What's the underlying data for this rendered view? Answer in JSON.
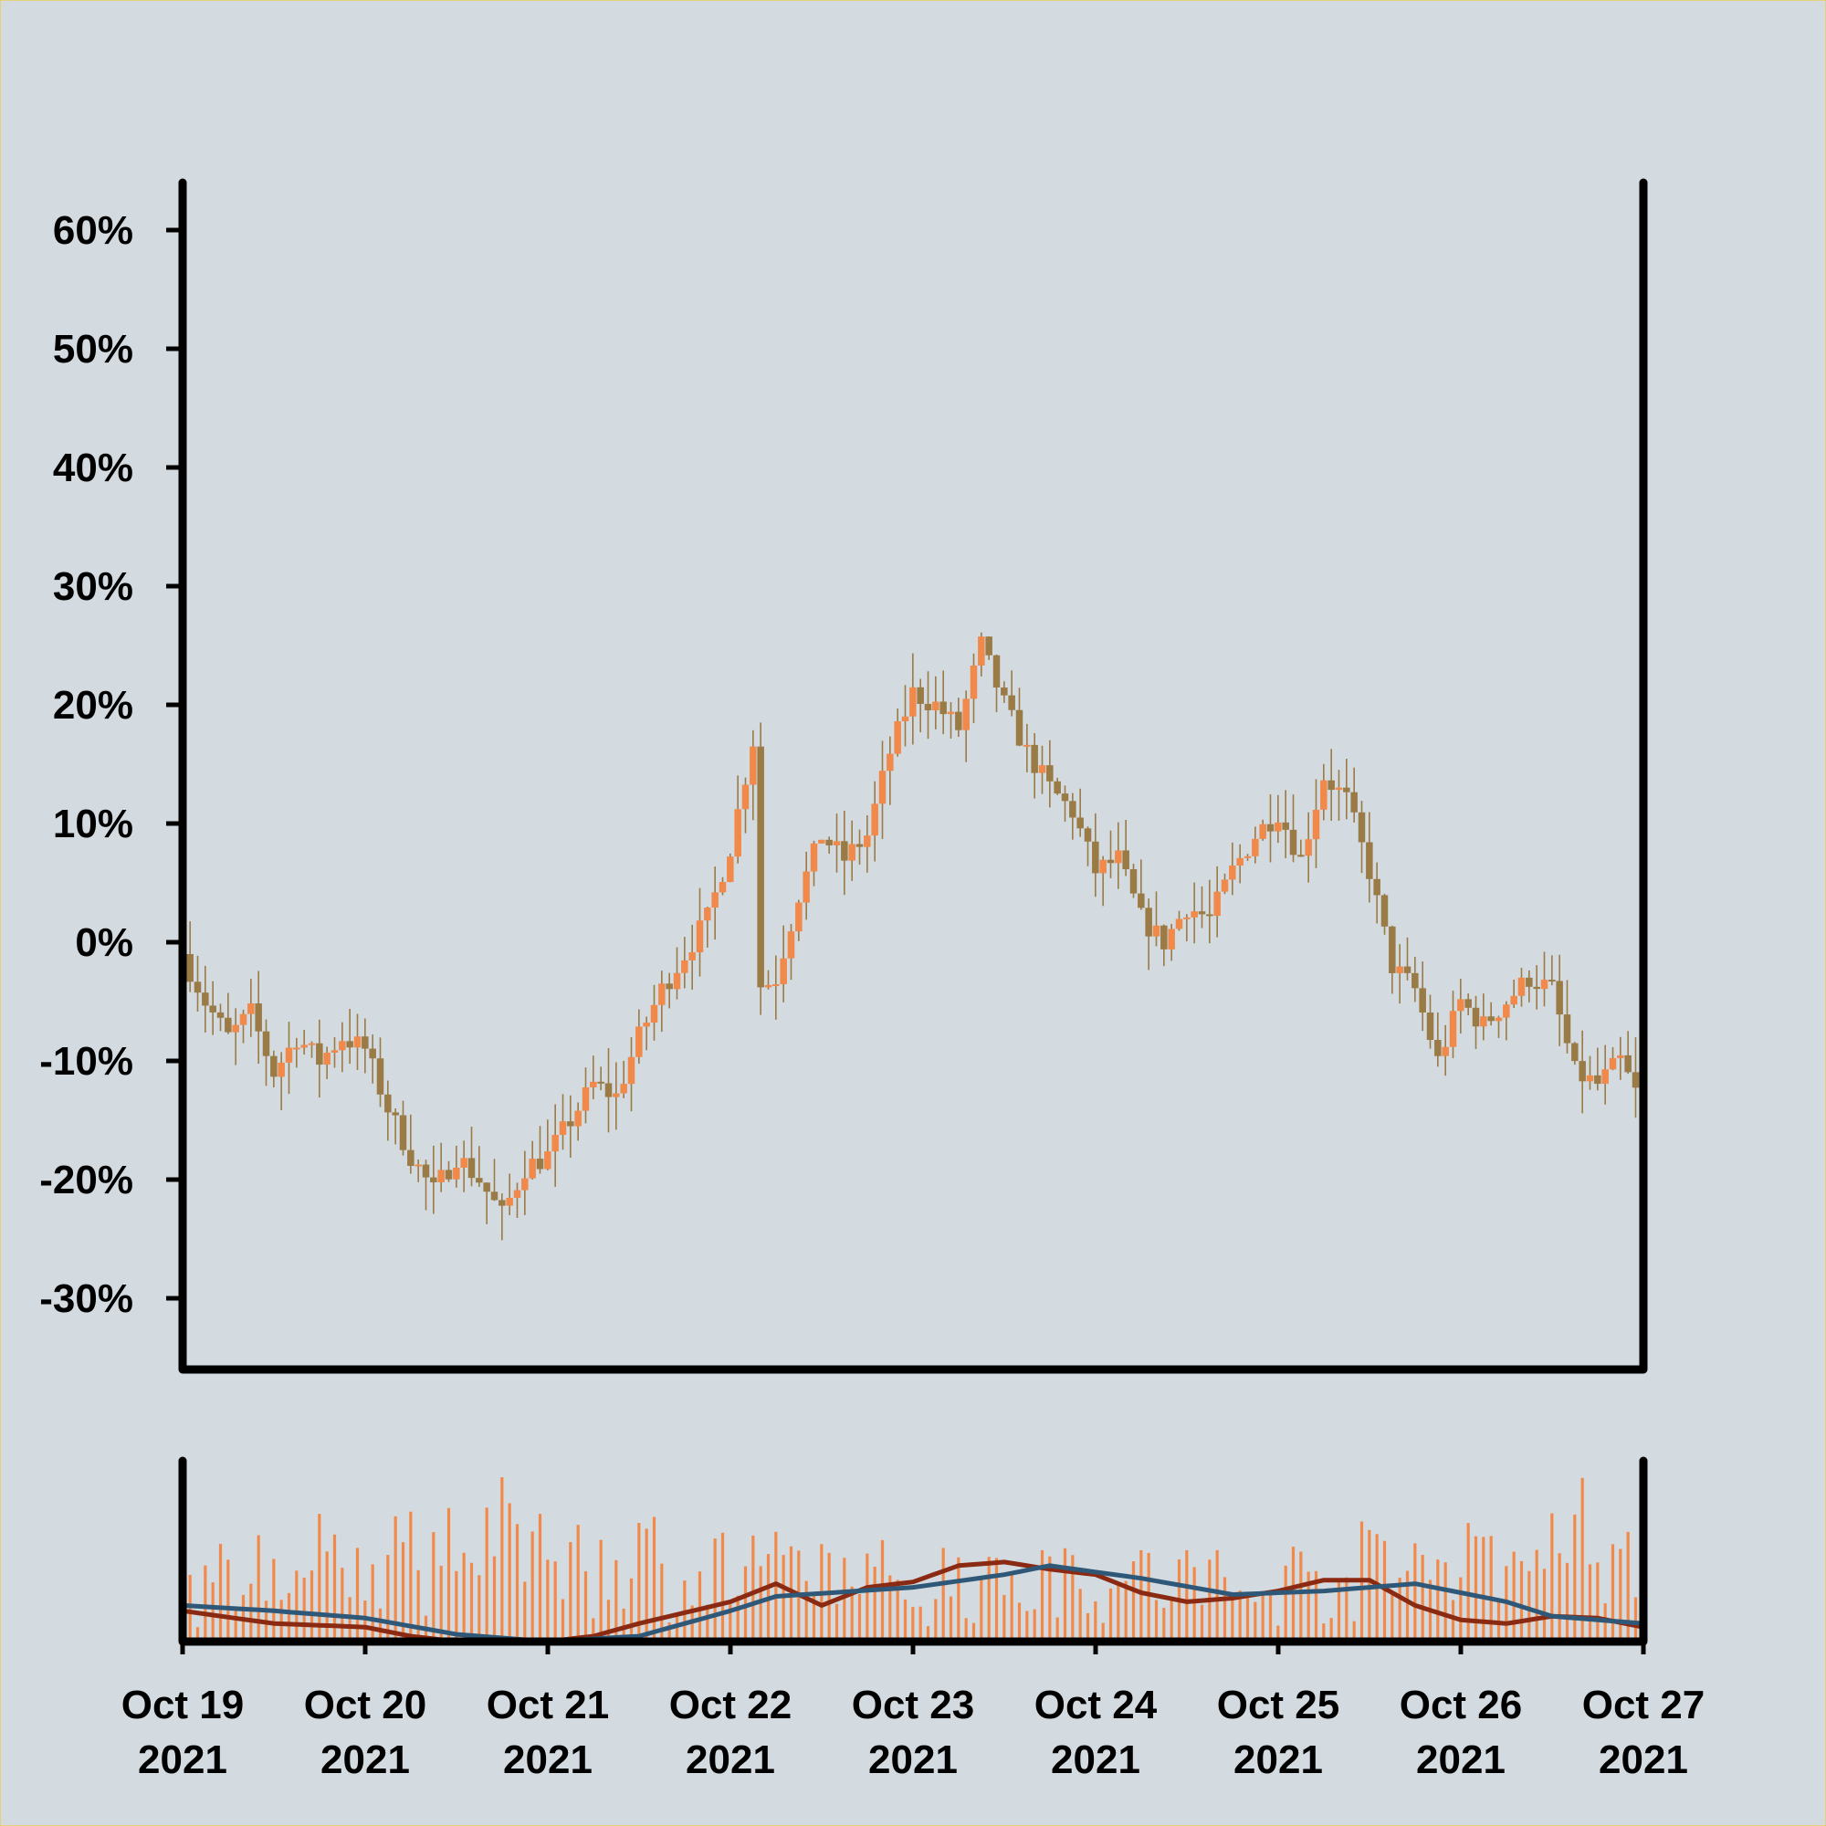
{
  "chart_data": [
    {
      "type": "candlestick",
      "title": "",
      "xlabel": "",
      "ylabel": "",
      "ylim": [
        -36,
        64
      ],
      "y_ticks": [
        "60%",
        "50%",
        "40%",
        "30%",
        "20%",
        "10%",
        "0%",
        "-10%",
        "-20%",
        "-30%"
      ],
      "y_tick_values": [
        60,
        50,
        40,
        30,
        20,
        10,
        0,
        -10,
        -20,
        -30
      ],
      "colors": {
        "up": "#f0894a",
        "down": "#9a7a45",
        "wick": "#9a7a45",
        "background": "#d3dbe0",
        "axis": "#000000"
      },
      "x_start": "2021-10-19",
      "x_end": "2021-10-27",
      "anchors": [
        [
          "2021-10-19 00:00",
          -1
        ],
        [
          "2021-10-19 03:00",
          -5
        ],
        [
          "2021-10-19 06:00",
          -8
        ],
        [
          "2021-10-19 09:00",
          -6
        ],
        [
          "2021-10-19 12:00",
          -11
        ],
        [
          "2021-10-19 15:00",
          -8
        ],
        [
          "2021-10-19 18:00",
          -10
        ],
        [
          "2021-10-19 21:00",
          -8
        ],
        [
          "2021-10-20 00:00",
          -9
        ],
        [
          "2021-10-20 03:00",
          -14
        ],
        [
          "2021-10-20 06:00",
          -18
        ],
        [
          "2021-10-20 09:00",
          -21
        ],
        [
          "2021-10-20 12:00",
          -18
        ],
        [
          "2021-10-20 15:00",
          -20
        ],
        [
          "2021-10-20 18:00",
          -23
        ],
        [
          "2021-10-20 21:00",
          -19
        ],
        [
          "2021-10-21 00:00",
          -18
        ],
        [
          "2021-10-21 03:00",
          -15
        ],
        [
          "2021-10-21 06:00",
          -12
        ],
        [
          "2021-10-21 09:00",
          -13
        ],
        [
          "2021-10-21 12:00",
          -8
        ],
        [
          "2021-10-21 15:00",
          -4
        ],
        [
          "2021-10-21 18:00",
          -1
        ],
        [
          "2021-10-21 21:00",
          2
        ],
        [
          "2021-10-22 00:00",
          8
        ],
        [
          "2021-10-22 03:00",
          17
        ],
        [
          "2021-10-22 03:30",
          -4
        ],
        [
          "2021-10-22 06:00",
          -3
        ],
        [
          "2021-10-22 09:00",
          4
        ],
        [
          "2021-10-22 12:00",
          9
        ],
        [
          "2021-10-22 15:00",
          7
        ],
        [
          "2021-10-22 18:00",
          9
        ],
        [
          "2021-10-22 21:00",
          16
        ],
        [
          "2021-10-23 00:00",
          21
        ],
        [
          "2021-10-23 03:00",
          20
        ],
        [
          "2021-10-23 06:00",
          18
        ],
        [
          "2021-10-23 09:00",
          25
        ],
        [
          "2021-10-23 12:00",
          20
        ],
        [
          "2021-10-23 15:00",
          16
        ],
        [
          "2021-10-23 18:00",
          13
        ],
        [
          "2021-10-23 21:00",
          11
        ],
        [
          "2021-10-24 00:00",
          6
        ],
        [
          "2021-10-24 03:00",
          7
        ],
        [
          "2021-10-24 06:00",
          2
        ],
        [
          "2021-10-24 09:00",
          0
        ],
        [
          "2021-10-24 12:00",
          3
        ],
        [
          "2021-10-24 15:00",
          2
        ],
        [
          "2021-10-24 18:00",
          6
        ],
        [
          "2021-10-24 21:00",
          9
        ],
        [
          "2021-10-25 00:00",
          11
        ],
        [
          "2021-10-25 03:00",
          7
        ],
        [
          "2021-10-25 06:00",
          14
        ],
        [
          "2021-10-25 09:00",
          12
        ],
        [
          "2021-10-25 12:00",
          6
        ],
        [
          "2021-10-25 15:00",
          -2
        ],
        [
          "2021-10-25 18:00",
          -4
        ],
        [
          "2021-10-25 21:00",
          -10
        ],
        [
          "2021-10-26 00:00",
          -5
        ],
        [
          "2021-10-26 03:00",
          -7
        ],
        [
          "2021-10-26 06:00",
          -5
        ],
        [
          "2021-10-26 09:00",
          -3
        ],
        [
          "2021-10-26 12:00",
          -4
        ],
        [
          "2021-10-26 15:00",
          -11
        ],
        [
          "2021-10-26 18:00",
          -12
        ],
        [
          "2021-10-26 21:00",
          -10
        ],
        [
          "2021-10-27 00:00",
          -14
        ]
      ]
    },
    {
      "type": "bar",
      "title": "",
      "xlabel": "",
      "ylabel": "",
      "colors": {
        "bars": "#f0894a",
        "ma_short": "#8b2a12",
        "ma_long": "#2f5878",
        "axis": "#000000"
      },
      "volume_envelope": [
        [
          "2021-10-19 00:00",
          0.35
        ],
        [
          "2021-10-19 12:00",
          0.5
        ],
        [
          "2021-10-20 00:00",
          0.55
        ],
        [
          "2021-10-20 12:00",
          0.65
        ],
        [
          "2021-10-21 00:00",
          0.65
        ],
        [
          "2021-10-21 12:00",
          0.55
        ],
        [
          "2021-10-22 00:00",
          0.45
        ],
        [
          "2021-10-22 12:00",
          0.45
        ],
        [
          "2021-10-23 00:00",
          0.4
        ],
        [
          "2021-10-23 12:00",
          0.45
        ],
        [
          "2021-10-24 00:00",
          0.45
        ],
        [
          "2021-10-24 12:00",
          0.4
        ],
        [
          "2021-10-25 00:00",
          0.4
        ],
        [
          "2021-10-25 12:00",
          0.5
        ],
        [
          "2021-10-26 00:00",
          0.6
        ],
        [
          "2021-10-26 12:00",
          0.65
        ],
        [
          "2021-10-27 00:00",
          0.7
        ]
      ],
      "ma_short": [
        [
          "2021-10-19 00:00",
          0.17
        ],
        [
          "2021-10-19 12:00",
          0.1
        ],
        [
          "2021-10-20 00:00",
          0.08
        ],
        [
          "2021-10-20 06:00",
          0.03
        ],
        [
          "2021-10-20 12:00",
          0.0
        ],
        [
          "2021-10-21 00:00",
          0.0
        ],
        [
          "2021-10-21 06:00",
          0.03
        ],
        [
          "2021-10-21 12:00",
          0.1
        ],
        [
          "2021-10-22 00:00",
          0.22
        ],
        [
          "2021-10-22 06:00",
          0.32
        ],
        [
          "2021-10-22 12:00",
          0.2
        ],
        [
          "2021-10-22 18:00",
          0.3
        ],
        [
          "2021-10-23 00:00",
          0.33
        ],
        [
          "2021-10-23 06:00",
          0.42
        ],
        [
          "2021-10-23 12:00",
          0.44
        ],
        [
          "2021-10-23 18:00",
          0.4
        ],
        [
          "2021-10-24 00:00",
          0.37
        ],
        [
          "2021-10-24 06:00",
          0.27
        ],
        [
          "2021-10-24 12:00",
          0.22
        ],
        [
          "2021-10-24 18:00",
          0.24
        ],
        [
          "2021-10-25 00:00",
          0.28
        ],
        [
          "2021-10-25 06:00",
          0.34
        ],
        [
          "2021-10-25 12:00",
          0.34
        ],
        [
          "2021-10-25 18:00",
          0.2
        ],
        [
          "2021-10-26 00:00",
          0.12
        ],
        [
          "2021-10-26 06:00",
          0.1
        ],
        [
          "2021-10-26 12:00",
          0.14
        ],
        [
          "2021-10-26 18:00",
          0.13
        ],
        [
          "2021-10-27 00:00",
          0.08
        ]
      ],
      "ma_long": [
        [
          "2021-10-19 00:00",
          0.2
        ],
        [
          "2021-10-19 12:00",
          0.17
        ],
        [
          "2021-10-20 00:00",
          0.13
        ],
        [
          "2021-10-20 12:00",
          0.04
        ],
        [
          "2021-10-21 00:00",
          0.0
        ],
        [
          "2021-10-21 12:00",
          0.03
        ],
        [
          "2021-10-22 00:00",
          0.17
        ],
        [
          "2021-10-22 06:00",
          0.25
        ],
        [
          "2021-10-23 00:00",
          0.3
        ],
        [
          "2021-10-23 12:00",
          0.37
        ],
        [
          "2021-10-23 18:00",
          0.42
        ],
        [
          "2021-10-24 06:00",
          0.35
        ],
        [
          "2021-10-24 18:00",
          0.26
        ],
        [
          "2021-10-25 06:00",
          0.28
        ],
        [
          "2021-10-25 18:00",
          0.32
        ],
        [
          "2021-10-26 06:00",
          0.22
        ],
        [
          "2021-10-26 12:00",
          0.14
        ],
        [
          "2021-10-27 00:00",
          0.1
        ]
      ]
    }
  ],
  "x_axis": {
    "ticks": [
      {
        "date": "2021-10-19",
        "line1": "Oct 19",
        "line2": "2021"
      },
      {
        "date": "2021-10-20",
        "line1": "Oct 20",
        "line2": "2021"
      },
      {
        "date": "2021-10-21",
        "line1": "Oct 21",
        "line2": "2021"
      },
      {
        "date": "2021-10-22",
        "line1": "Oct 22",
        "line2": "2021"
      },
      {
        "date": "2021-10-23",
        "line1": "Oct 23",
        "line2": "2021"
      },
      {
        "date": "2021-10-24",
        "line1": "Oct 24",
        "line2": "2021"
      },
      {
        "date": "2021-10-25",
        "line1": "Oct 25",
        "line2": "2021"
      },
      {
        "date": "2021-10-26",
        "line1": "Oct 26",
        "line2": "2021"
      },
      {
        "date": "2021-10-27",
        "line1": "Oct 27",
        "line2": "2021"
      }
    ]
  }
}
